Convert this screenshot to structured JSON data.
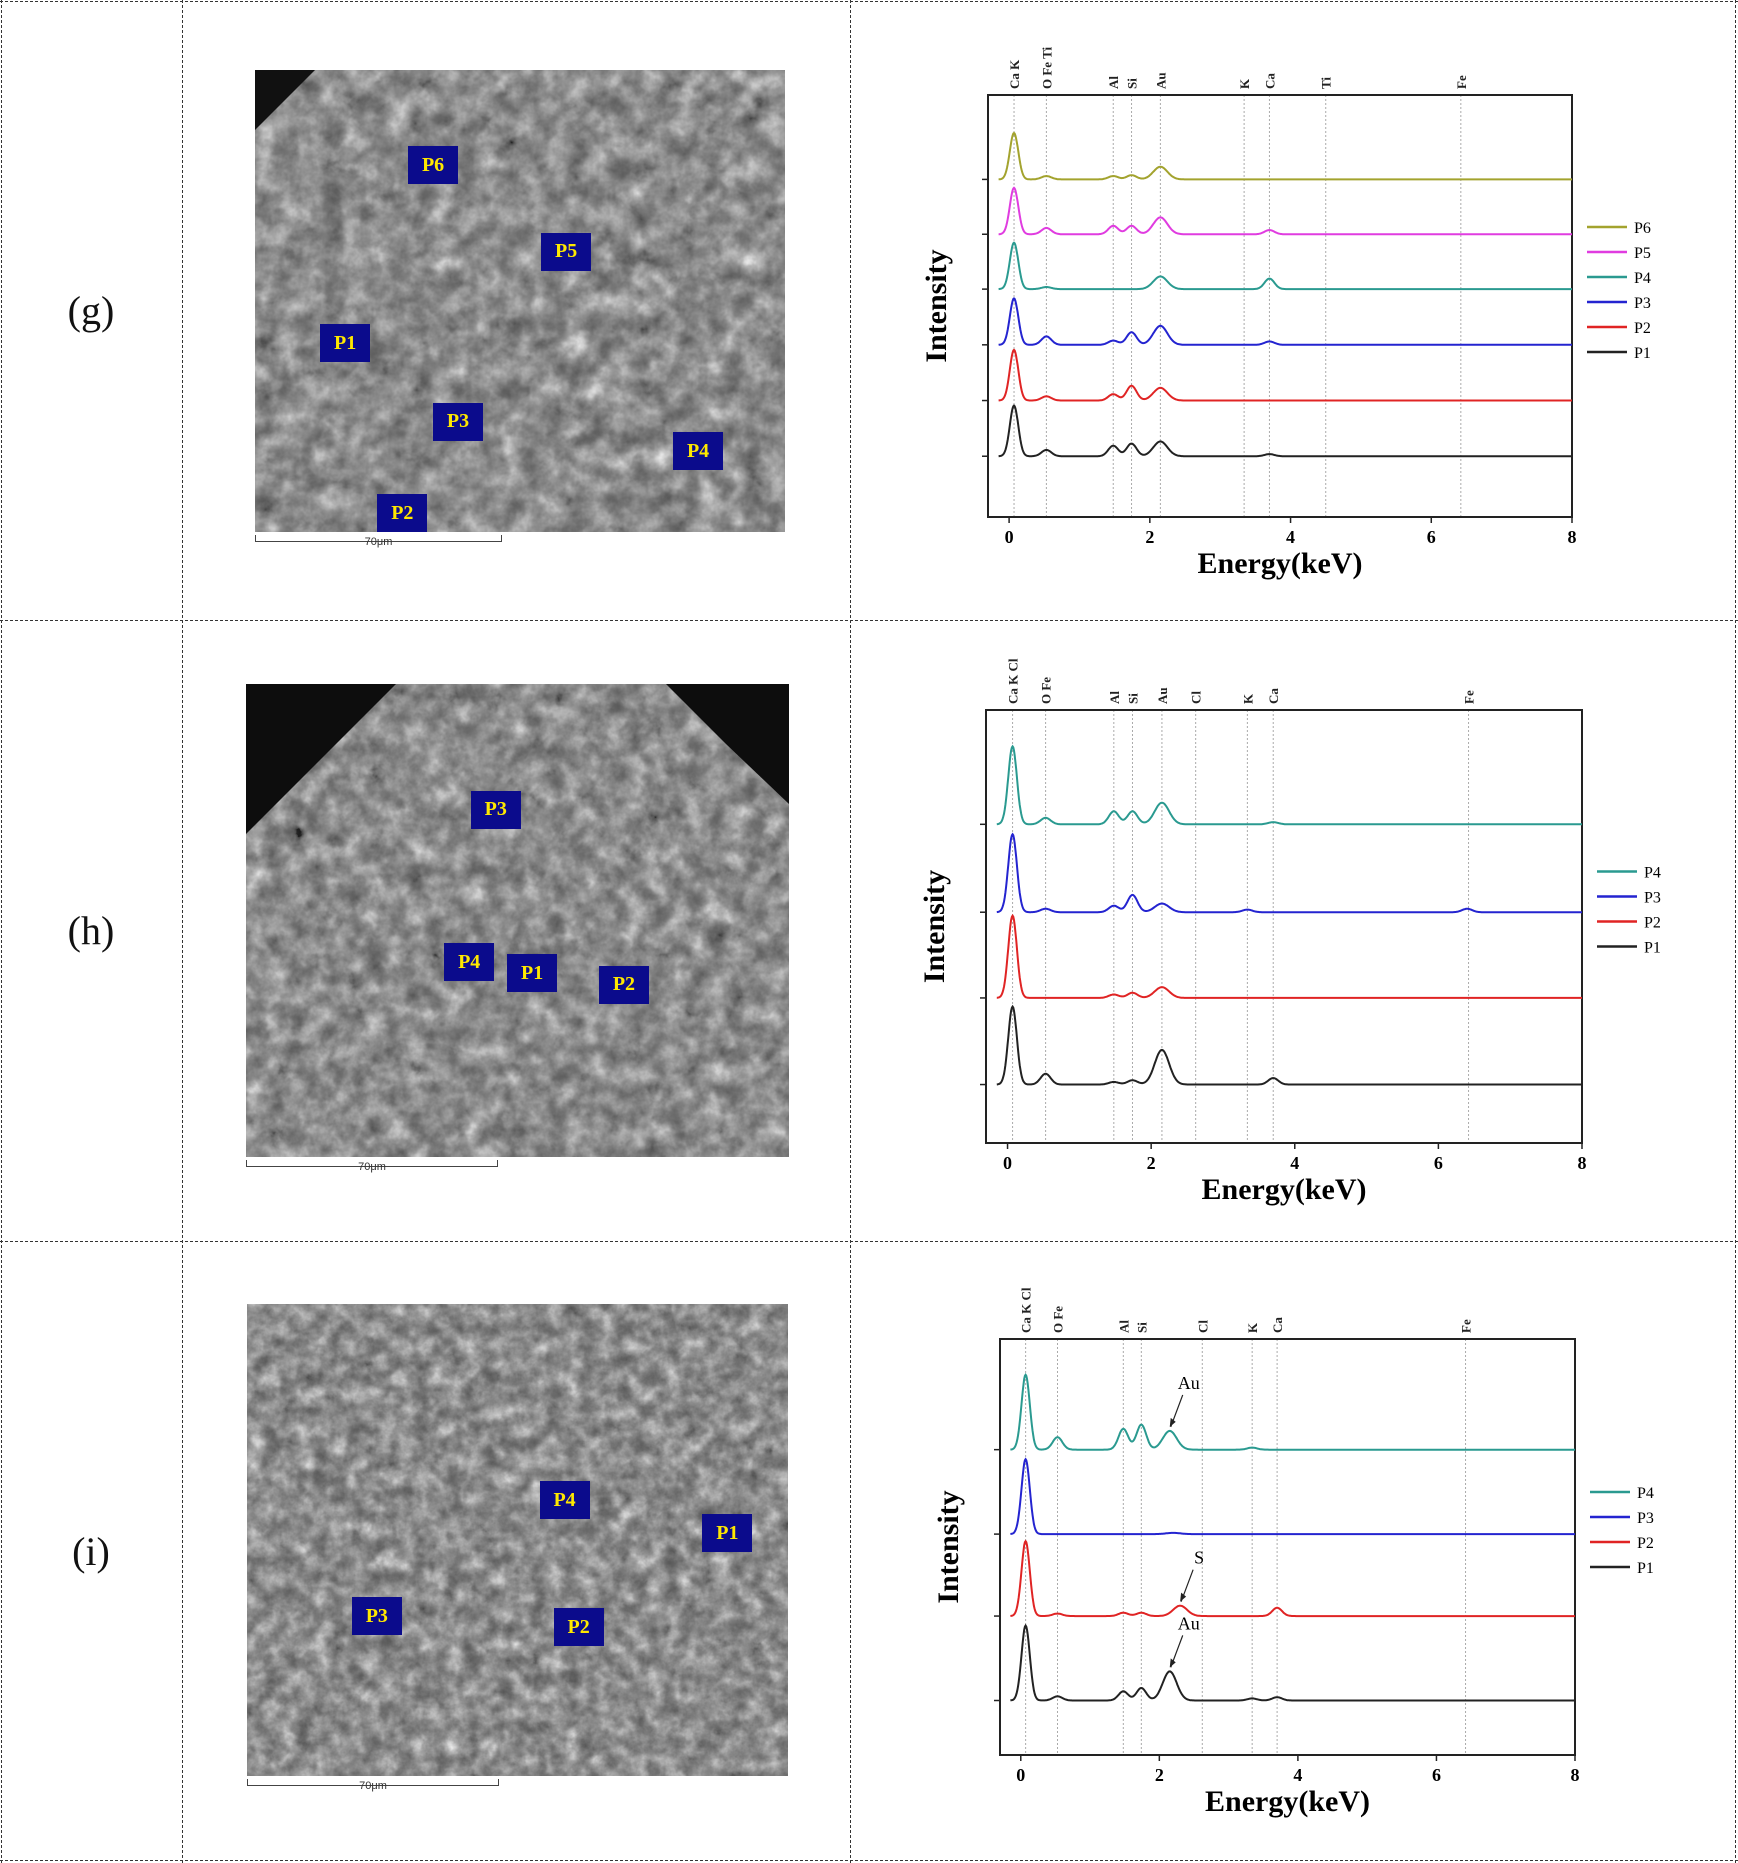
{
  "rows": [
    {
      "label": "(g)",
      "points": [
        "P6",
        "P5",
        "P1",
        "P3",
        "P4",
        "P2"
      ],
      "scale": "70μm"
    },
    {
      "label": "(h)",
      "points": [
        "P3",
        "P4",
        "P1",
        "P2"
      ],
      "scale": "70μm"
    },
    {
      "label": "(i)",
      "points": [
        "P4",
        "P1",
        "P3",
        "P2"
      ],
      "scale": "70μm"
    }
  ],
  "chart_data": [
    {
      "type": "line",
      "xlabel": "Energy(keV)",
      "ylabel": "Intensity",
      "xlim": [
        -0.3,
        8
      ],
      "xticks": [
        0,
        2,
        4,
        6,
        8
      ],
      "ylim": [
        0,
        100
      ],
      "element_lines": [
        {
          "label": "Ca K",
          "e": 0.07
        },
        {
          "label": "O Fe Ti",
          "e": 0.53
        },
        {
          "label": "Al",
          "e": 1.48
        },
        {
          "label": "Si",
          "e": 1.74
        },
        {
          "label": "Au",
          "e": 2.15
        },
        {
          "label": "K",
          "e": 3.34
        },
        {
          "label": "Ca",
          "e": 3.7
        },
        {
          "label": "Ti",
          "e": 4.5
        },
        {
          "label": "Fe",
          "e": 6.42
        }
      ],
      "series": [
        {
          "name": "P6",
          "color": "#a3a32e",
          "offset": 80,
          "peaks": [
            [
              0.07,
              11
            ],
            [
              0.53,
              0.8
            ],
            [
              1.48,
              0.8
            ],
            [
              1.74,
              1
            ],
            [
              2.15,
              3
            ]
          ]
        },
        {
          "name": "P5",
          "color": "#e03ce0",
          "offset": 67,
          "peaks": [
            [
              0.07,
              11
            ],
            [
              0.53,
              1.5
            ],
            [
              1.48,
              2
            ],
            [
              1.74,
              2
            ],
            [
              2.15,
              4
            ],
            [
              3.7,
              1
            ]
          ]
        },
        {
          "name": "P4",
          "color": "#2a9a90",
          "offset": 54,
          "peaks": [
            [
              0.07,
              11
            ],
            [
              0.53,
              0.5
            ],
            [
              2.15,
              3
            ],
            [
              3.7,
              2.5
            ]
          ]
        },
        {
          "name": "P3",
          "color": "#2424d0",
          "offset": 40.8,
          "peaks": [
            [
              0.07,
              11
            ],
            [
              0.53,
              2
            ],
            [
              1.48,
              1
            ],
            [
              1.74,
              3
            ],
            [
              2.15,
              4.5
            ],
            [
              3.7,
              0.8
            ]
          ]
        },
        {
          "name": "P2",
          "color": "#e02424",
          "offset": 27.6,
          "peaks": [
            [
              0.07,
              12
            ],
            [
              0.53,
              1
            ],
            [
              1.48,
              1.5
            ],
            [
              1.74,
              3.5
            ],
            [
              2.15,
              3
            ]
          ]
        },
        {
          "name": "P1",
          "color": "#222222",
          "offset": 14.4,
          "peaks": [
            [
              0.07,
              12
            ],
            [
              0.53,
              1.5
            ],
            [
              1.48,
              2.5
            ],
            [
              1.74,
              3
            ],
            [
              2.15,
              3.5
            ],
            [
              3.7,
              0.5
            ]
          ]
        }
      ],
      "annotations": []
    },
    {
      "type": "line",
      "xlabel": "Energy(keV)",
      "ylabel": "Intensity",
      "xlim": [
        -0.3,
        8
      ],
      "xticks": [
        0,
        2,
        4,
        6,
        8
      ],
      "ylim": [
        0,
        100
      ],
      "element_lines": [
        {
          "label": "Ca K Cl",
          "e": 0.07
        },
        {
          "label": "O Fe",
          "e": 0.53
        },
        {
          "label": "Al",
          "e": 1.48
        },
        {
          "label": "Si",
          "e": 1.74
        },
        {
          "label": "Au",
          "e": 2.15
        },
        {
          "label": "Cl",
          "e": 2.62
        },
        {
          "label": "K",
          "e": 3.34
        },
        {
          "label": "Ca",
          "e": 3.7
        },
        {
          "label": "Fe",
          "e": 6.42
        }
      ],
      "series": [
        {
          "name": "P4",
          "color": "#2a9a90",
          "offset": 73.6,
          "peaks": [
            [
              0.07,
              18
            ],
            [
              0.53,
              1.5
            ],
            [
              1.48,
              3
            ],
            [
              1.74,
              3
            ],
            [
              2.15,
              5
            ],
            [
              3.7,
              0.5
            ]
          ]
        },
        {
          "name": "P3",
          "color": "#2424d0",
          "offset": 53.3,
          "peaks": [
            [
              0.07,
              18
            ],
            [
              0.53,
              0.8
            ],
            [
              1.48,
              1.5
            ],
            [
              1.74,
              4
            ],
            [
              2.15,
              2
            ],
            [
              3.34,
              0.6
            ],
            [
              6.4,
              0.8
            ]
          ]
        },
        {
          "name": "P2",
          "color": "#e02424",
          "offset": 33.5,
          "peaks": [
            [
              0.07,
              19
            ],
            [
              1.48,
              0.8
            ],
            [
              1.74,
              1.2
            ],
            [
              2.15,
              2.5
            ]
          ]
        },
        {
          "name": "P1",
          "color": "#222222",
          "offset": 13.5,
          "peaks": [
            [
              0.07,
              18
            ],
            [
              0.53,
              2.5
            ],
            [
              1.48,
              0.6
            ],
            [
              1.74,
              1
            ],
            [
              2.15,
              8
            ],
            [
              3.7,
              1.5
            ]
          ]
        }
      ],
      "annotations": []
    },
    {
      "type": "line",
      "xlabel": "Energy(keV)",
      "ylabel": "Intensity",
      "xlim": [
        -0.3,
        8
      ],
      "xticks": [
        0,
        2,
        4,
        6,
        8
      ],
      "ylim": [
        0,
        100
      ],
      "element_lines": [
        {
          "label": "Ca K Cl",
          "e": 0.07
        },
        {
          "label": "O Fe",
          "e": 0.53
        },
        {
          "label": "Al",
          "e": 1.48
        },
        {
          "label": "Si",
          "e": 1.74
        },
        {
          "label": "Cl",
          "e": 2.62
        },
        {
          "label": "K",
          "e": 3.34
        },
        {
          "label": "Ca",
          "e": 3.7
        },
        {
          "label": "Fe",
          "e": 6.42
        }
      ],
      "series": [
        {
          "name": "P4",
          "color": "#2a9a90",
          "offset": 73.4,
          "peaks": [
            [
              0.07,
              18
            ],
            [
              0.53,
              3
            ],
            [
              1.48,
              5
            ],
            [
              1.74,
              6
            ],
            [
              2.15,
              4.5
            ],
            [
              3.34,
              0.5
            ]
          ]
        },
        {
          "name": "P3",
          "color": "#2424d0",
          "offset": 53.1,
          "peaks": [
            [
              0.07,
              18
            ],
            [
              2.2,
              0.3
            ]
          ]
        },
        {
          "name": "P2",
          "color": "#e02424",
          "offset": 33.4,
          "peaks": [
            [
              0.07,
              18
            ],
            [
              0.53,
              0.6
            ],
            [
              1.48,
              0.8
            ],
            [
              1.74,
              0.8
            ],
            [
              2.3,
              2.5
            ],
            [
              3.7,
              2
            ]
          ]
        },
        {
          "name": "P1",
          "color": "#222222",
          "offset": 13.1,
          "peaks": [
            [
              0.07,
              18
            ],
            [
              0.53,
              1
            ],
            [
              1.48,
              2.2
            ],
            [
              1.74,
              3
            ],
            [
              2.15,
              7
            ],
            [
              3.34,
              0.5
            ],
            [
              3.7,
              0.8
            ]
          ]
        }
      ],
      "annotations": [
        {
          "text": "Au",
          "series": "P4",
          "e": 2.15
        },
        {
          "text": "S",
          "series": "P2",
          "e": 2.3
        },
        {
          "text": "Au",
          "series": "P1",
          "e": 2.15
        }
      ]
    }
  ]
}
